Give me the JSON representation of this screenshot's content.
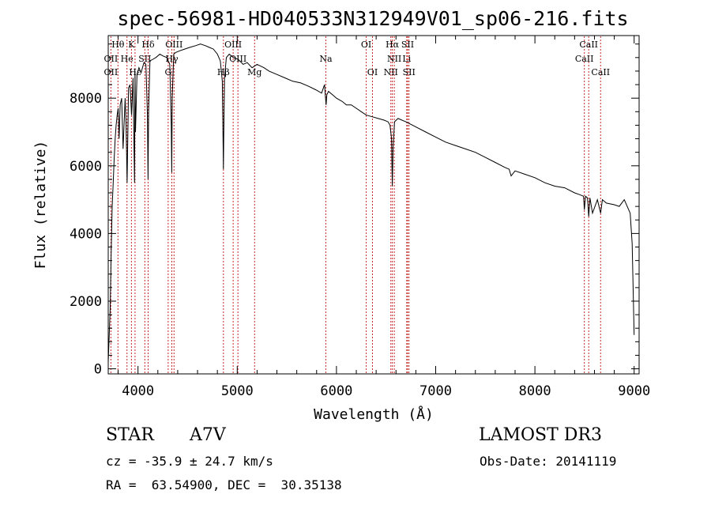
{
  "chart_data": {
    "type": "line",
    "title": "spec-56981-HD040533N312949V01_sp06-216.fits",
    "xlabel": "Wavelength (Å)",
    "ylabel": "Flux (relative)",
    "xlim": [
      3700,
      9050
    ],
    "ylim": [
      -150,
      9850
    ],
    "xticks": [
      4000,
      5000,
      6000,
      7000,
      8000,
      9000
    ],
    "yticks": [
      0,
      2000,
      4000,
      6000,
      8000
    ],
    "spectrum_x": [
      3700,
      3720,
      3730,
      3740,
      3750,
      3760,
      3770,
      3780,
      3790,
      3800,
      3810,
      3820,
      3835,
      3850,
      3870,
      3880,
      3890,
      3905,
      3920,
      3935,
      3950,
      3965,
      3970,
      3975,
      3990,
      4010,
      4030,
      4060,
      4080,
      4095,
      4101,
      4107,
      4120,
      4150,
      4180,
      4220,
      4250,
      4290,
      4320,
      4335,
      4340,
      4345,
      4360,
      4380,
      4420,
      4470,
      4520,
      4580,
      4630,
      4680,
      4720,
      4760,
      4800,
      4830,
      4850,
      4858,
      4861,
      4864,
      4872,
      4890,
      4920,
      4960,
      5010,
      5060,
      5100,
      5150,
      5200,
      5270,
      5320,
      5400,
      5480,
      5560,
      5640,
      5720,
      5790,
      5850,
      5880,
      5890,
      5896,
      5903,
      5920,
      5960,
      6000,
      6060,
      6100,
      6150,
      6200,
      6250,
      6300,
      6360,
      6420,
      6480,
      6520,
      6540,
      6555,
      6563,
      6570,
      6585,
      6620,
      6700,
      6800,
      6900,
      7000,
      7100,
      7200,
      7300,
      7400,
      7500,
      7600,
      7700,
      7740,
      7760,
      7800,
      7900,
      8000,
      8100,
      8200,
      8300,
      8400,
      8450,
      8490,
      8498,
      8510,
      8530,
      8542,
      8555,
      8580,
      8630,
      8662,
      8680,
      8720,
      8800,
      8850,
      8900,
      8960,
      8980,
      9000
    ],
    "spectrum_y": [
      200,
      1800,
      3500,
      4800,
      5500,
      6200,
      6800,
      7200,
      7500,
      7700,
      6800,
      7800,
      8000,
      6500,
      8000,
      7200,
      5500,
      8300,
      8400,
      7500,
      8600,
      5500,
      8800,
      7000,
      8700,
      8900,
      8750,
      9050,
      9000,
      7500,
      5600,
      7600,
      9100,
      9150,
      9200,
      9300,
      9250,
      9200,
      9000,
      7200,
      5800,
      8000,
      9300,
      9350,
      9400,
      9450,
      9500,
      9550,
      9600,
      9550,
      9500,
      9450,
      9300,
      9100,
      8500,
      6500,
      5900,
      6800,
      8600,
      9200,
      9300,
      9200,
      9150,
      9000,
      9050,
      8900,
      9000,
      8900,
      8800,
      8700,
      8600,
      8500,
      8450,
      8350,
      8250,
      8150,
      8400,
      8000,
      7800,
      8100,
      8200,
      8100,
      8000,
      7900,
      7800,
      7800,
      7700,
      7600,
      7500,
      7450,
      7400,
      7350,
      7300,
      7200,
      6800,
      5400,
      6500,
      7300,
      7400,
      7300,
      7150,
      7000,
      6850,
      6700,
      6600,
      6500,
      6400,
      6250,
      6100,
      5950,
      5900,
      5700,
      5850,
      5750,
      5650,
      5500,
      5400,
      5350,
      5200,
      5150,
      5100,
      4700,
      5100,
      5050,
      4500,
      5050,
      4600,
      5000,
      4600,
      5000,
      4900,
      4850,
      4800,
      5000,
      4600,
      3700,
      1000
    ],
    "lines_top": [
      {
        "name": "Hθ",
        "wl": 3798
      },
      {
        "name": "K",
        "wl": 3934
      },
      {
        "name": "Hδ",
        "wl": 4102
      },
      {
        "name": "OIII",
        "wl": 4363
      },
      {
        "name": "OIII",
        "wl": 4959
      },
      {
        "name": "OI",
        "wl": 6300
      },
      {
        "name": "Hα",
        "wl": 6563
      },
      {
        "name": "SII",
        "wl": 6717
      },
      {
        "name": "CaII",
        "wl": 8542
      }
    ],
    "lines_mid": [
      {
        "name": "OII",
        "wl": 3727
      },
      {
        "name": "He",
        "wl": 3889
      },
      {
        "name": "SII",
        "wl": 4069
      },
      {
        "name": "Hγ",
        "wl": 4341
      },
      {
        "name": "OIII",
        "wl": 5007
      },
      {
        "name": "Na",
        "wl": 5893
      },
      {
        "name": "NII",
        "wl": 6583
      },
      {
        "name": "Li",
        "wl": 6708
      },
      {
        "name": "CaII",
        "wl": 8498
      }
    ],
    "lines_low": [
      {
        "name": "OII",
        "wl": 3727
      },
      {
        "name": "Hε",
        "wl": 3970
      },
      {
        "name": "G",
        "wl": 4304
      },
      {
        "name": "Hβ",
        "wl": 4861
      },
      {
        "name": "Mg",
        "wl": 5175
      },
      {
        "name": "OI",
        "wl": 6363
      },
      {
        "name": "NII",
        "wl": 6548
      },
      {
        "name": "SII",
        "wl": 6731
      },
      {
        "name": "CaII",
        "wl": 8662
      }
    ]
  },
  "info": {
    "object_class": "STAR",
    "subclass": "A7V",
    "survey": "LAMOST DR3",
    "redshift": "cz = -35.9 ± 24.7 km/s",
    "obs_date": "Obs-Date: 20141119",
    "coords": "RA =  63.54900, DEC =  30.35138"
  }
}
